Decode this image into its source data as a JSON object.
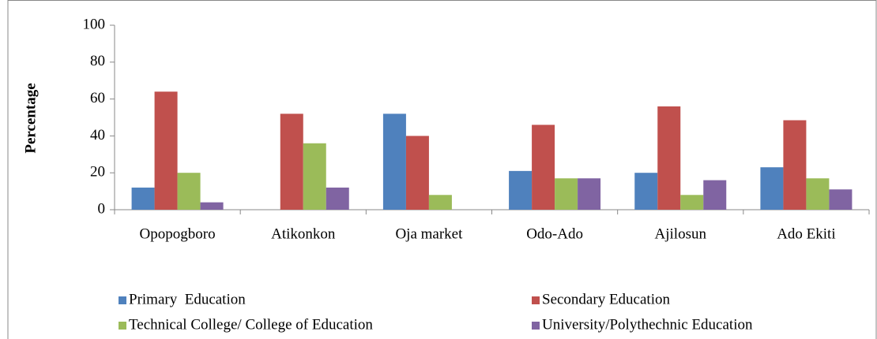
{
  "chart_data": {
    "type": "bar",
    "ylabel": "Percentage",
    "categories": [
      "Opopogboro",
      "Atikonkon",
      "Oja market",
      "Odo-Ado",
      "Ajilosun",
      "Ado Ekiti"
    ],
    "series": [
      {
        "name": "Primary  Education",
        "color": "#4f81bd",
        "values": [
          12,
          0,
          52,
          21,
          20,
          23
        ]
      },
      {
        "name": "Secondary Education",
        "color": "#c0504d",
        "values": [
          64,
          52,
          40,
          46,
          56,
          48.5
        ]
      },
      {
        "name": "Technical College/ College of Education",
        "color": "#9bbb59",
        "values": [
          20,
          36,
          8,
          17,
          8,
          17
        ]
      },
      {
        "name": "University/Polythechnic Education",
        "color": "#8064a2",
        "values": [
          4,
          12,
          0,
          17,
          16,
          11
        ]
      }
    ],
    "ylim": [
      0,
      100
    ],
    "yticks": [
      0,
      20,
      40,
      60,
      80,
      100
    ],
    "grid": false
  }
}
